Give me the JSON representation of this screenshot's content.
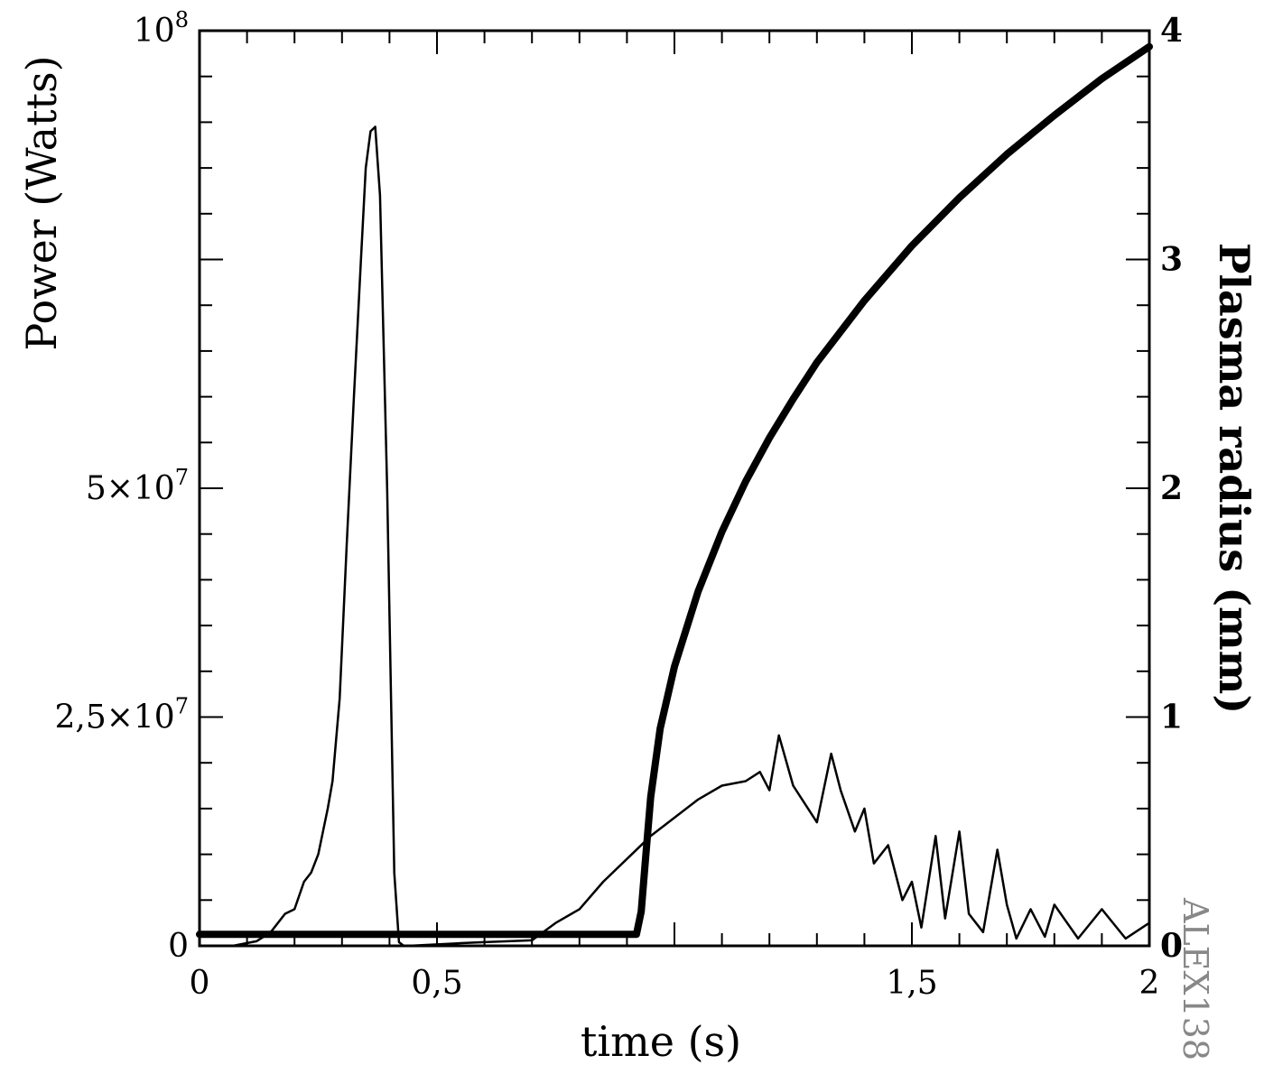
{
  "chart_data": {
    "type": "line",
    "xlabel": "time (s)",
    "ylabel_left": "Power (Watts)",
    "ylabel_right": "Plasma radius (mm)",
    "watermark": "ALEX138",
    "xlim": [
      0,
      2
    ],
    "ylim_left": [
      0,
      100000000
    ],
    "ylim_right": [
      0,
      4
    ],
    "x_ticks": [
      {
        "value": 0,
        "label": "0"
      },
      {
        "value": 0.5,
        "label": "0,5"
      },
      {
        "value": 1.5,
        "label": "1,5"
      },
      {
        "value": 2,
        "label": "2"
      }
    ],
    "y_left_ticks": [
      {
        "value": 0,
        "label": "0",
        "exp": ""
      },
      {
        "value": 25000000,
        "label": "2,5×10",
        "exp": "7"
      },
      {
        "value": 50000000,
        "label": "5×10",
        "exp": "7"
      },
      {
        "value": 100000000,
        "label": "10",
        "exp": "8"
      }
    ],
    "y_right_ticks": [
      {
        "value": 0,
        "label": "0"
      },
      {
        "value": 1,
        "label": "1"
      },
      {
        "value": 2,
        "label": "2"
      },
      {
        "value": 3,
        "label": "3"
      },
      {
        "value": 4,
        "label": "4"
      }
    ],
    "series": [
      {
        "axis": "left",
        "x": [
          0,
          0.07,
          0.12,
          0.15,
          0.18,
          0.2,
          0.22,
          0.235,
          0.25,
          0.27,
          0.28,
          0.295,
          0.31,
          0.325,
          0.34,
          0.35,
          0.36,
          0.37,
          0.38,
          0.395,
          0.41,
          0.42,
          0.43,
          0.44,
          0.55,
          0.6,
          0.7,
          0.75,
          0.8,
          0.85,
          0.9,
          0.95,
          1.0,
          1.05,
          1.1,
          1.15,
          1.18,
          1.2,
          1.22,
          1.25,
          1.3,
          1.33,
          1.35,
          1.38,
          1.4,
          1.42,
          1.45,
          1.48,
          1.5,
          1.52,
          1.55,
          1.57,
          1.6,
          1.62,
          1.65,
          1.68,
          1.7,
          1.72,
          1.75,
          1.78,
          1.8,
          1.85,
          1.9,
          1.95,
          2.0
        ],
        "y": [
          0,
          0,
          500000,
          1500000,
          3500000,
          4000000,
          7000000,
          8000000,
          10000000,
          15000000,
          18000000,
          27000000,
          44000000,
          60000000,
          75000000,
          85000000,
          89000000,
          89500000,
          82000000,
          50000000,
          8000000,
          400000,
          0,
          0,
          300000,
          400000,
          600000,
          2500000,
          4000000,
          7000000,
          9500000,
          12000000,
          14000000,
          16000000,
          17500000,
          18000000,
          19000000,
          17000000,
          23000000,
          17500000,
          13500000,
          21000000,
          17000000,
          12500000,
          15000000,
          9000000,
          11000000,
          5000000,
          7000000,
          2000000,
          12000000,
          3000000,
          12500000,
          3500000,
          1500000,
          10500000,
          4500000,
          800000,
          4000000,
          1000000,
          4500000,
          800000,
          4000000,
          800000,
          2500000
        ]
      },
      {
        "axis": "right",
        "x": [
          0,
          0.9,
          0.92,
          0.93,
          0.94,
          0.95,
          0.97,
          1.0,
          1.05,
          1.1,
          1.15,
          1.2,
          1.25,
          1.3,
          1.4,
          1.5,
          1.6,
          1.7,
          1.8,
          1.9,
          2.0
        ],
        "y": [
          0.05,
          0.05,
          0.05,
          0.15,
          0.4,
          0.65,
          0.95,
          1.22,
          1.55,
          1.81,
          2.03,
          2.22,
          2.39,
          2.55,
          2.82,
          3.06,
          3.27,
          3.46,
          3.63,
          3.79,
          3.93
        ]
      }
    ]
  }
}
